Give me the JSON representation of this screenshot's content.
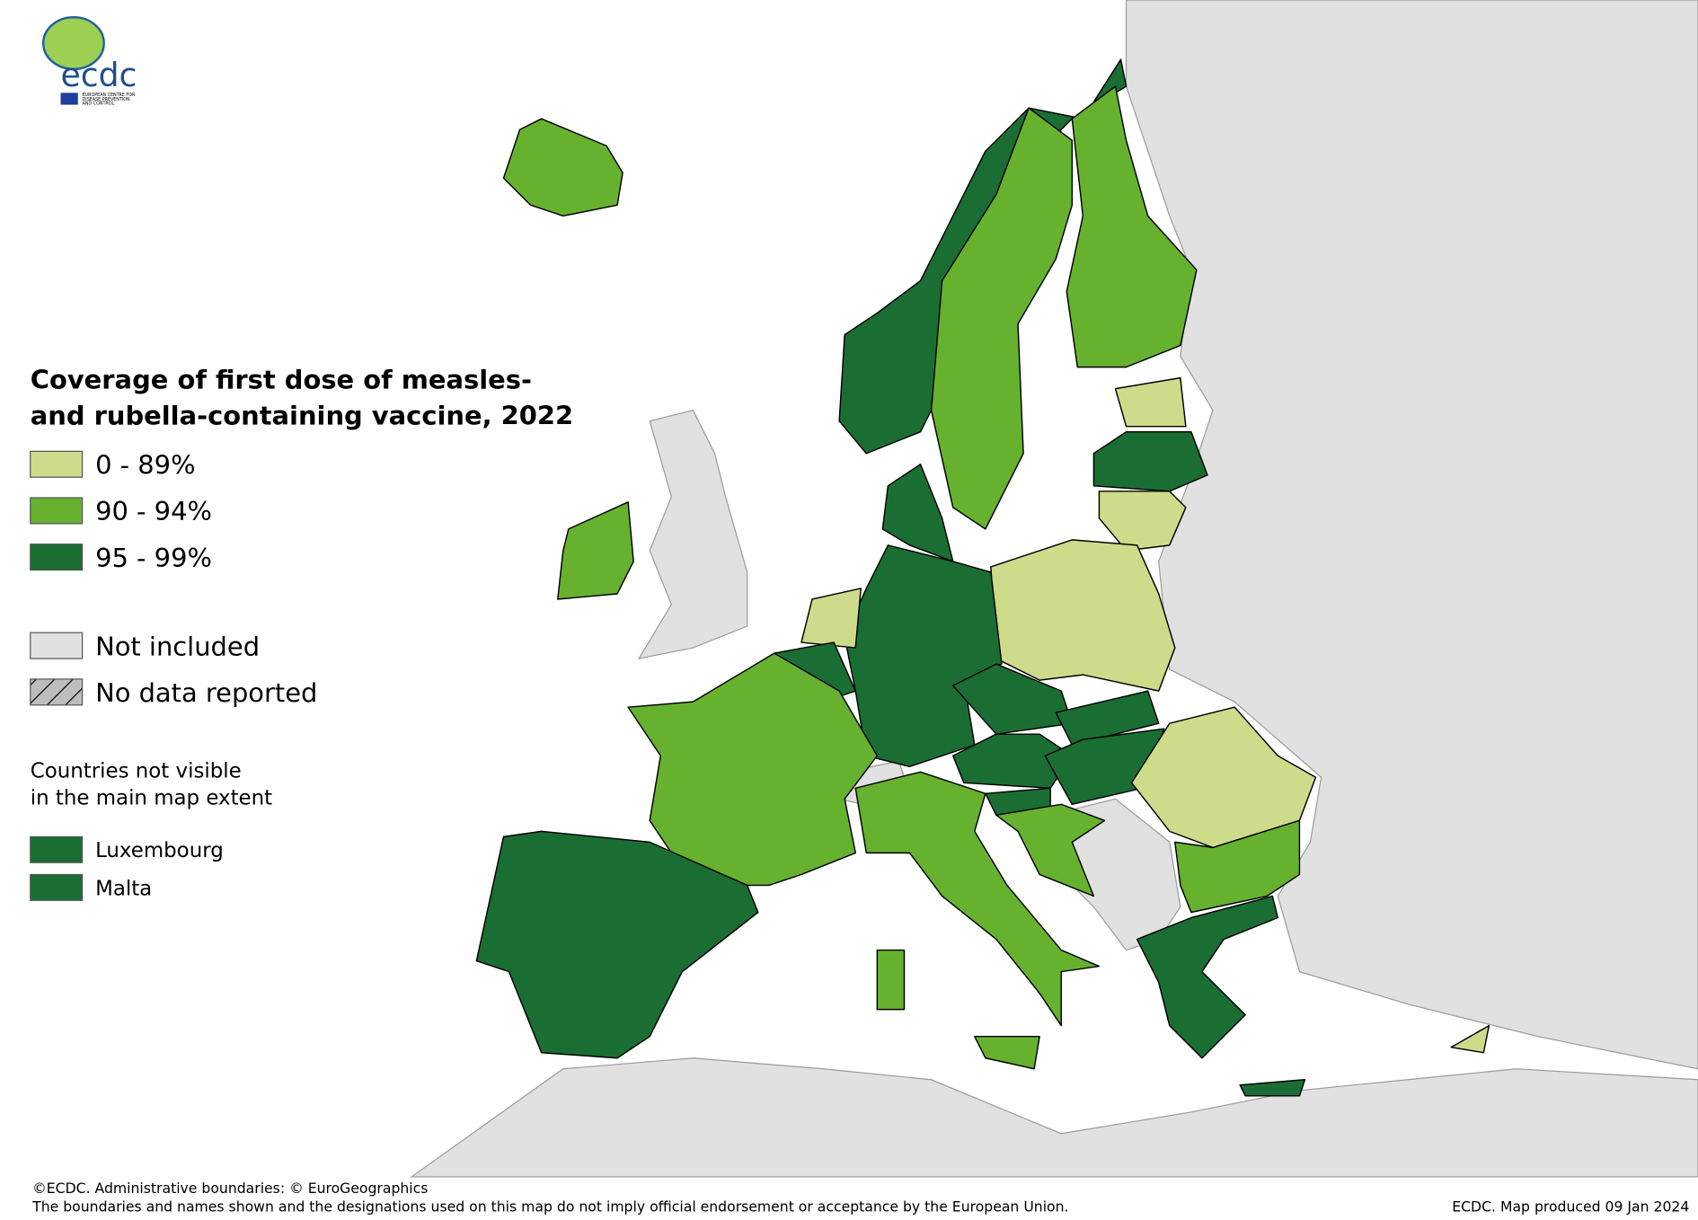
{
  "logo": {
    "name": "ecdc",
    "subtitle_lines": [
      "EUROPEAN CENTRE FOR",
      "DISEASE PREVENTION",
      "AND CONTROL"
    ]
  },
  "legend": {
    "title_lines": [
      "Coverage of first dose of measles-",
      "and rubella-containing vaccine, 2022"
    ],
    "items": [
      {
        "label": "0 - 89%",
        "color": "#cddb8a"
      },
      {
        "label": "90 - 94%",
        "color": "#66b22f"
      },
      {
        "label": "95 - 99%",
        "color": "#1a6e34"
      }
    ],
    "other_items": [
      {
        "label": "Not included",
        "color": "#e1e1e1"
      },
      {
        "label": "No data reported"
      }
    ],
    "note_lines": [
      "Countries not visible",
      "in the main map extent"
    ],
    "small_countries": [
      {
        "name": "Luxembourg",
        "color": "#1a6e34"
      },
      {
        "name": "Malta",
        "color": "#1a6e34"
      }
    ]
  },
  "footer": {
    "credit": "©ECDC. Administrative boundaries: © EuroGeographics",
    "disclaimer": "The boundaries and names shown and the designations used on this map do not imply official endorsement or acceptance by the European Union.",
    "produced": "ECDC. Map produced 09 Jan 2024"
  }
}
